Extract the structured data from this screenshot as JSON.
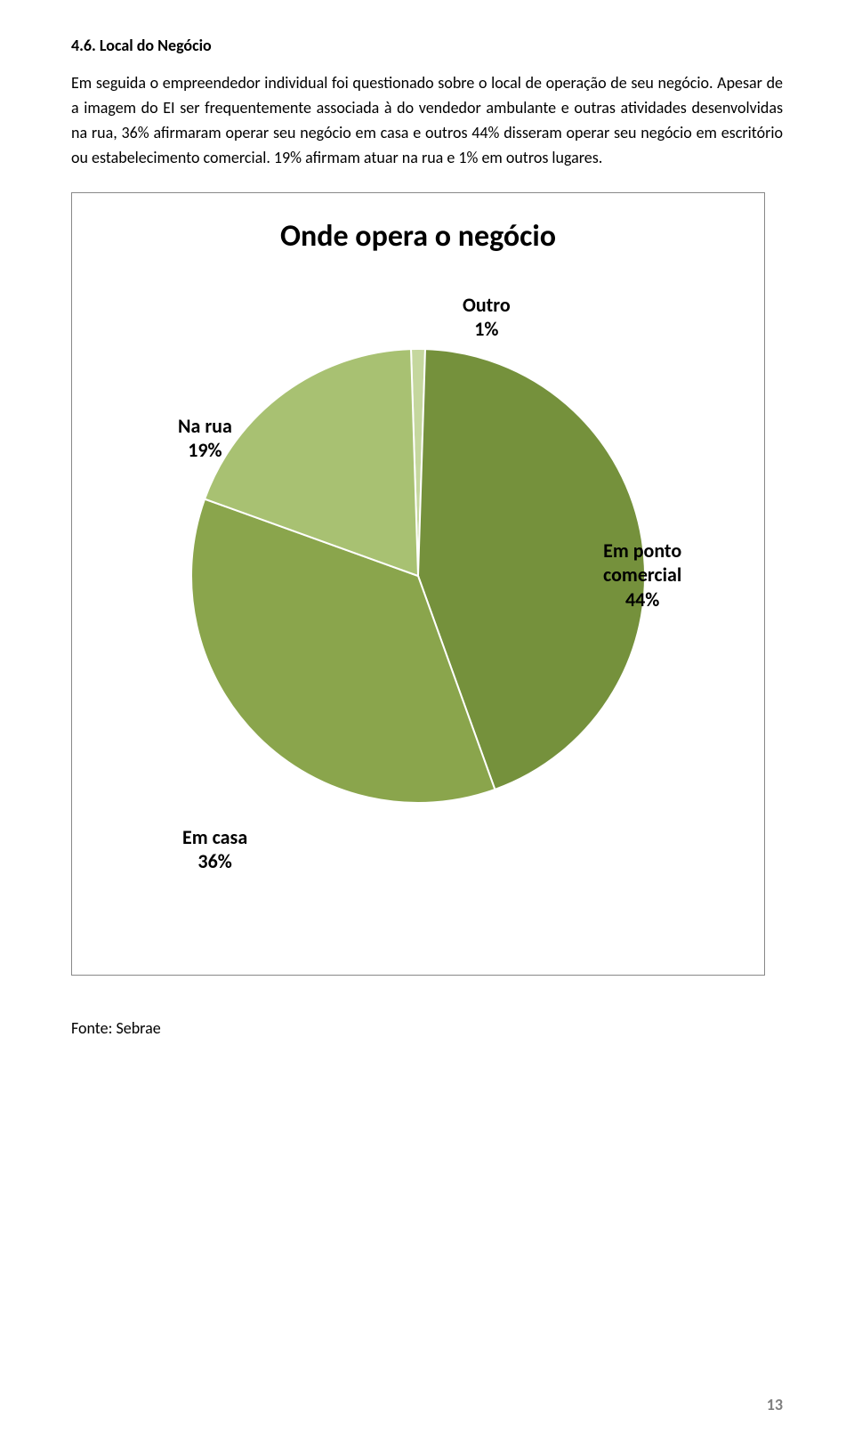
{
  "heading": "4.6. Local do Negócio",
  "paragraph": "Em seguida o empreendedor individual foi questionado sobre o local de operação de seu negócio. Apesar de a imagem do EI ser frequentemente associada à do vendedor ambulante e outras atividades desenvolvidas na rua, 36% afirmaram operar seu negócio em casa e outros 44% disseram operar seu negócio em escritório ou estabelecimento comercial. 19% afirmam atuar na rua e 1% em outros lugares.",
  "chart": {
    "type": "pie",
    "title": "Onde opera o negócio",
    "background_color": "#ffffff",
    "border_color": "#888888",
    "title_fontsize": 34,
    "label_fontsize": 22,
    "label_fontweight": "bold",
    "slices": [
      {
        "name": "Outro",
        "label": "Outro\n1%",
        "value": 1,
        "color": "#c5d79e"
      },
      {
        "name": "Em ponto comercial",
        "label": "Em ponto\ncomercial\n44%",
        "value": 44,
        "color": "#75913c"
      },
      {
        "name": "Em casa",
        "label": "Em casa\n36%",
        "value": 36,
        "color": "#8aa54c"
      },
      {
        "name": "Na rua",
        "label": "Na rua\n19%",
        "value": 19,
        "color": "#a8c172"
      }
    ]
  },
  "source": "Fonte: Sebrae",
  "page_number": "13"
}
